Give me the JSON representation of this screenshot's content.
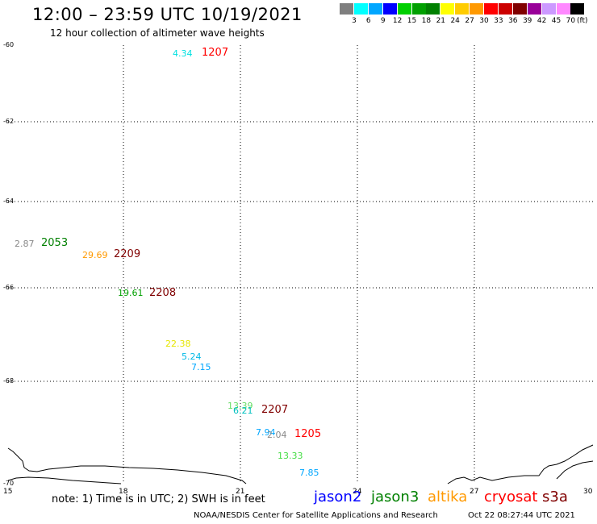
{
  "header": {
    "title": "12:00 – 23:59 UTC 10/19/2021",
    "subtitle": "12 hour collection of altimeter wave heights"
  },
  "color_scale": {
    "labels": [
      "3",
      "6",
      "9",
      "12",
      "15",
      "18",
      "21",
      "24",
      "27",
      "30",
      "33",
      "36",
      "39",
      "42",
      "45",
      "70"
    ],
    "colors": [
      "#7f7f7f",
      "#00ffff",
      "#00a6ff",
      "#0000ff",
      "#00d000",
      "#00a000",
      "#008000",
      "#ffff00",
      "#ffcc00",
      "#ff9900",
      "#ff0000",
      "#cc0000",
      "#800000",
      "#990099",
      "#cc99ff",
      "#ff88ff",
      "#000000"
    ],
    "unit": "(ft)"
  },
  "axes": {
    "y_labels": [
      "-60",
      "-62",
      "-64",
      "-66",
      "-68",
      "-70"
    ],
    "x_labels": [
      "15",
      "18",
      "21",
      "24",
      "27",
      "30"
    ]
  },
  "map": {
    "points": [
      {
        "text": "4.34",
        "color": "#00e0e0"
      },
      {
        "text": "1207",
        "color": "#ff0000",
        "kind": "time"
      },
      {
        "text": "2.87",
        "color": "#888888"
      },
      {
        "text": "2053",
        "color": "#008000",
        "kind": "time"
      },
      {
        "text": "29.69",
        "color": "#ff9900"
      },
      {
        "text": "2209",
        "color": "#800000",
        "kind": "time"
      },
      {
        "text": "19.61",
        "color": "#00a000"
      },
      {
        "text": "2208",
        "color": "#800000",
        "kind": "time"
      },
      {
        "text": "22.38",
        "color": "#e6e600"
      },
      {
        "text": "5.24",
        "color": "#00b8e6"
      },
      {
        "text": "7.15",
        "color": "#00a6ff"
      },
      {
        "text": "13.39",
        "color": "#66dd66"
      },
      {
        "text": "6.21",
        "color": "#00c0c0"
      },
      {
        "text": "2207",
        "color": "#800000",
        "kind": "time"
      },
      {
        "text": "7.94",
        "color": "#00a6ff"
      },
      {
        "text": "2.04",
        "color": "#888888"
      },
      {
        "text": "1205",
        "color": "#ff0000",
        "kind": "time"
      },
      {
        "text": "13.33",
        "color": "#44dd44"
      },
      {
        "text": "7.85",
        "color": "#00a6ff"
      }
    ]
  },
  "footer": {
    "note": "note: 1) Time is in UTC; 2) SWH is in feet",
    "satellites": [
      {
        "name": "jason2",
        "color": "#0000ff"
      },
      {
        "name": "jason3",
        "color": "#008000"
      },
      {
        "name": "altika",
        "color": "#ff9900"
      },
      {
        "name": "cryosat",
        "color": "#ff0000"
      },
      {
        "name": "s3a",
        "color": "#800000"
      }
    ],
    "credit": "NOAA/NESDIS Center for Satellite Applications and Research",
    "timestamp": "Oct 22 08:27:44 UTC 2021"
  }
}
